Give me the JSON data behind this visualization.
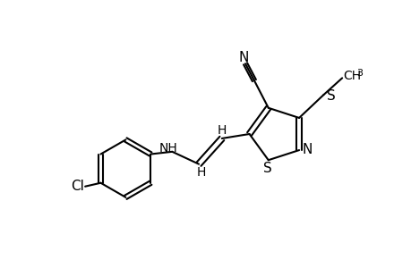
{
  "bg_color": "#ffffff",
  "bond_color": "#000000",
  "lw": 1.5,
  "fs": 11,
  "fs_small": 10,
  "fig_width": 4.6,
  "fig_height": 3.0,
  "dpi": 100,
  "xlim": [
    0.0,
    9.0
  ],
  "ylim": [
    0.5,
    6.5
  ]
}
